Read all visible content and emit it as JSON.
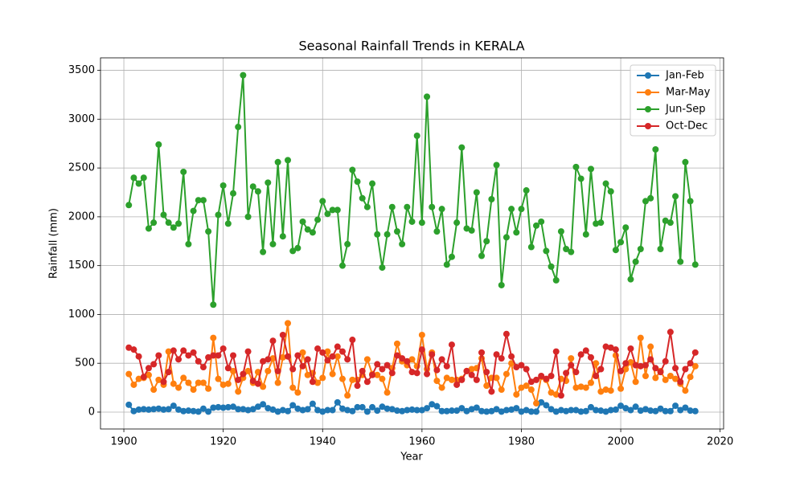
{
  "chart_data": {
    "type": "line",
    "title": "Seasonal Rainfall Trends in KERALA",
    "x_label": "Year",
    "y_label": "Rainfall (mm)",
    "x": [
      1901,
      1902,
      1903,
      1904,
      1905,
      1906,
      1907,
      1908,
      1909,
      1910,
      1911,
      1912,
      1913,
      1914,
      1915,
      1916,
      1917,
      1918,
      1919,
      1920,
      1921,
      1922,
      1923,
      1924,
      1925,
      1926,
      1927,
      1928,
      1929,
      1930,
      1931,
      1932,
      1933,
      1934,
      1935,
      1936,
      1937,
      1938,
      1939,
      1940,
      1941,
      1942,
      1943,
      1944,
      1945,
      1946,
      1947,
      1948,
      1949,
      1950,
      1951,
      1952,
      1953,
      1954,
      1955,
      1956,
      1957,
      1958,
      1959,
      1960,
      1961,
      1962,
      1963,
      1964,
      1965,
      1966,
      1967,
      1968,
      1969,
      1970,
      1971,
      1972,
      1973,
      1974,
      1975,
      1976,
      1977,
      1978,
      1979,
      1980,
      1981,
      1982,
      1983,
      1984,
      1985,
      1986,
      1987,
      1988,
      1989,
      1990,
      1991,
      1992,
      1993,
      1994,
      1995,
      1996,
      1997,
      1998,
      1999,
      2000,
      2001,
      2002,
      2003,
      2004,
      2005,
      2006,
      2007,
      2008,
      2009,
      2010,
      2011,
      2012,
      2013,
      2014,
      2015
    ],
    "series": [
      {
        "name": "Jan-Feb",
        "color": "#1f77b4",
        "values": [
          75,
          10,
          25,
          30,
          25,
          30,
          35,
          25,
          30,
          65,
          25,
          10,
          15,
          10,
          5,
          35,
          5,
          45,
          50,
          45,
          50,
          55,
          30,
          30,
          20,
          30,
          55,
          80,
          40,
          25,
          5,
          20,
          10,
          70,
          35,
          20,
          30,
          85,
          20,
          5,
          20,
          20,
          100,
          35,
          20,
          10,
          50,
          50,
          5,
          50,
          15,
          55,
          35,
          30,
          15,
          10,
          20,
          25,
          20,
          20,
          40,
          80,
          60,
          10,
          10,
          15,
          15,
          40,
          10,
          30,
          45,
          10,
          5,
          10,
          30,
          5,
          20,
          25,
          40,
          5,
          20,
          5,
          5,
          100,
          70,
          30,
          5,
          20,
          10,
          20,
          20,
          5,
          10,
          50,
          20,
          15,
          5,
          20,
          25,
          65,
          40,
          20,
          55,
          15,
          30,
          15,
          10,
          35,
          10,
          10,
          65,
          20,
          45,
          15,
          10
        ]
      },
      {
        "name": "Mar-May",
        "color": "#ff7f0e",
        "values": [
          390,
          280,
          340,
          350,
          380,
          230,
          330,
          280,
          620,
          290,
          250,
          350,
          300,
          230,
          300,
          300,
          240,
          760,
          340,
          280,
          290,
          420,
          210,
          350,
          420,
          300,
          410,
          260,
          420,
          550,
          300,
          560,
          910,
          250,
          200,
          610,
          380,
          400,
          300,
          350,
          620,
          390,
          570,
          340,
          170,
          330,
          330,
          380,
          540,
          390,
          380,
          340,
          200,
          450,
          700,
          520,
          480,
          540,
          470,
          790,
          440,
          610,
          320,
          250,
          350,
          330,
          330,
          340,
          420,
          440,
          450,
          550,
          270,
          350,
          350,
          230,
          390,
          500,
          180,
          250,
          270,
          230,
          90,
          360,
          330,
          200,
          180,
          340,
          320,
          550,
          250,
          260,
          250,
          300,
          500,
          210,
          230,
          220,
          580,
          240,
          440,
          510,
          310,
          760,
          370,
          670,
          350,
          420,
          330,
          370,
          340,
          290,
          220,
          360,
          470
        ]
      },
      {
        "name": "Jun-Sep",
        "color": "#2ca02c",
        "values": [
          2120,
          2400,
          2340,
          2400,
          1880,
          1940,
          2740,
          2020,
          1940,
          1890,
          1930,
          2460,
          1720,
          2060,
          2170,
          2170,
          1850,
          1100,
          2020,
          2320,
          1930,
          2240,
          2920,
          3450,
          2000,
          2310,
          2260,
          1640,
          2350,
          1720,
          2560,
          1800,
          2580,
          1650,
          1680,
          1950,
          1870,
          1840,
          1970,
          2160,
          2030,
          2070,
          2070,
          1500,
          1720,
          2480,
          2360,
          2190,
          2100,
          2340,
          1820,
          1480,
          1820,
          2100,
          1850,
          1720,
          2100,
          1950,
          2830,
          1940,
          3230,
          2100,
          1850,
          2080,
          1510,
          1590,
          1940,
          2710,
          1880,
          1860,
          2250,
          1600,
          1750,
          2180,
          2530,
          1300,
          1790,
          2080,
          1840,
          2080,
          2270,
          1690,
          1910,
          1950,
          1650,
          1490,
          1350,
          1850,
          1670,
          1640,
          2510,
          2390,
          1820,
          2490,
          1930,
          1940,
          2340,
          2260,
          1660,
          1740,
          1890,
          1360,
          1540,
          1670,
          2160,
          2190,
          2690,
          1670,
          1960,
          1940,
          2210,
          1540,
          2560,
          2160,
          1510
        ]
      },
      {
        "name": "Oct-Dec",
        "color": "#d62728",
        "values": [
          660,
          640,
          570,
          360,
          450,
          490,
          580,
          310,
          410,
          630,
          540,
          630,
          580,
          610,
          520,
          460,
          560,
          580,
          580,
          650,
          450,
          580,
          330,
          390,
          620,
          320,
          290,
          520,
          540,
          730,
          420,
          790,
          570,
          440,
          580,
          470,
          540,
          310,
          650,
          610,
          530,
          570,
          670,
          620,
          540,
          740,
          270,
          420,
          310,
          380,
          490,
          440,
          480,
          400,
          580,
          550,
          520,
          410,
          400,
          640,
          390,
          590,
          430,
          540,
          470,
          690,
          280,
          330,
          420,
          380,
          330,
          610,
          410,
          210,
          590,
          550,
          800,
          570,
          460,
          480,
          440,
          310,
          330,
          370,
          340,
          370,
          620,
          170,
          400,
          480,
          410,
          590,
          630,
          560,
          370,
          440,
          670,
          660,
          640,
          420,
          500,
          650,
          480,
          470,
          480,
          540,
          450,
          410,
          520,
          820,
          450,
          310,
          440,
          500,
          610
        ]
      }
    ],
    "xlim": [
      1895.3,
      2020.7
    ],
    "xticks": [
      1900,
      1920,
      1940,
      1960,
      1980,
      2000,
      2020
    ],
    "ylim": [
      -173,
      3628
    ],
    "yticks": [
      0,
      500,
      1000,
      1500,
      2000,
      2500,
      3000,
      3500
    ],
    "grid": true,
    "legend": "upper right"
  }
}
